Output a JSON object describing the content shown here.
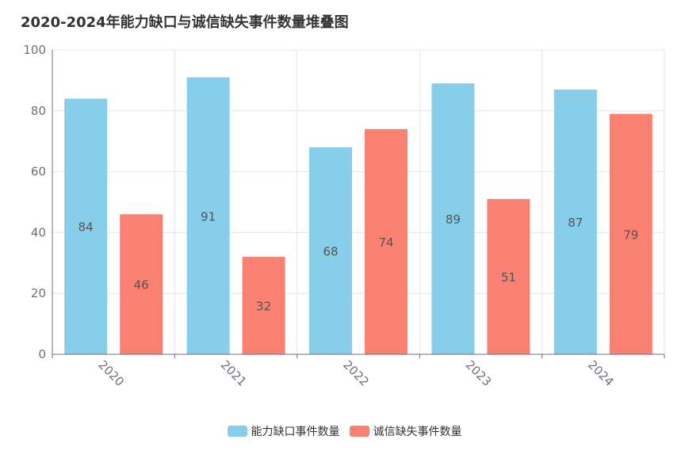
{
  "colors": {
    "capability": "#87CEEB",
    "integrity": "#FA8072",
    "axis": "#6E7079",
    "grid": "#E0E6F1",
    "label": "#555555"
  },
  "chart_data": {
    "type": "bar",
    "title": "2020-2024年能力缺口与诚信缺失事件数量堆叠图",
    "categories": [
      "2020",
      "2021",
      "2022",
      "2023",
      "2024"
    ],
    "series": [
      {
        "name": "能力缺口事件数量",
        "values": [
          84,
          91,
          68,
          89,
          87
        ]
      },
      {
        "name": "诚信缺失事件数量",
        "values": [
          46,
          32,
          74,
          51,
          79
        ]
      }
    ],
    "ylim": [
      0,
      100
    ],
    "yticks": [
      0,
      20,
      40,
      60,
      80,
      100
    ],
    "grid": true,
    "legend_position": "bottom-center"
  }
}
